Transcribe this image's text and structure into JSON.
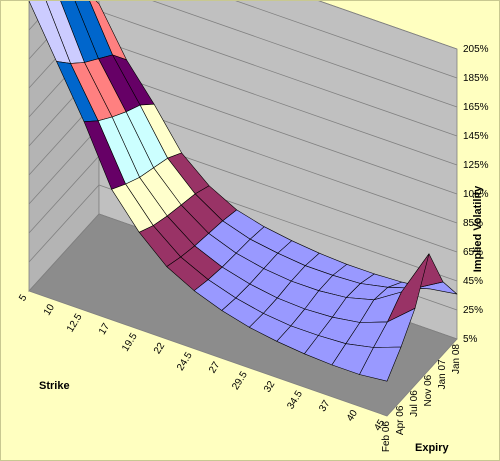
{
  "chart_data": {
    "type": "surface",
    "title": "",
    "xlabel": "Strike",
    "ylabel": "Expiry",
    "zlabel": "Implied Volatility",
    "zlim": [
      5,
      205
    ],
    "z_unit": "%",
    "grid": true,
    "strikes": [
      "5",
      "10",
      "12.5",
      "17",
      "19.5",
      "22",
      "24.5",
      "27",
      "29.5",
      "32",
      "34.5",
      "37",
      "40",
      "45"
    ],
    "expiries": [
      "Feb 06",
      "Apr 06",
      "Jul 06",
      "Nov 06",
      "Jan 07",
      "Jan 08"
    ],
    "z_ticks": [
      "5%",
      "25%",
      "45%",
      "65%",
      "85%",
      "105%",
      "125%",
      "145%",
      "165%",
      "185%",
      "205%"
    ],
    "band_colors": [
      "#9999ff",
      "#993366",
      "#ffffcc",
      "#ccffff",
      "#660066",
      "#ff8080",
      "#0066cc",
      "#ccccff",
      "#000080",
      "#ff00ff"
    ],
    "series": [
      {
        "name": "Feb 06",
        "values": [
          210,
          170,
          135,
          95,
          72,
          55,
          45,
          38,
          33,
          30,
          28,
          27,
          27,
          29
        ]
      },
      {
        "name": "Apr 06",
        "values": [
          200,
          158,
          125,
          88,
          66,
          51,
          42,
          36,
          32,
          30,
          30,
          31,
          35,
          42
        ]
      },
      {
        "name": "Jul 06",
        "values": [
          190,
          148,
          117,
          82,
          62,
          48,
          40,
          35,
          32,
          31,
          32,
          35,
          42,
          58
        ]
      },
      {
        "name": "Nov 06",
        "values": [
          180,
          140,
          110,
          78,
          59,
          46,
          39,
          35,
          33,
          33,
          35,
          40,
          52,
          85
        ]
      },
      {
        "name": "Jan 07",
        "values": [
          170,
          132,
          104,
          74,
          56,
          44,
          38,
          35,
          33,
          33,
          34,
          38,
          44,
          55
        ]
      },
      {
        "name": "Jan 08",
        "values": [
          150,
          118,
          94,
          67,
          51,
          41,
          36,
          33,
          31,
          30,
          30,
          31,
          33,
          36
        ]
      }
    ]
  }
}
